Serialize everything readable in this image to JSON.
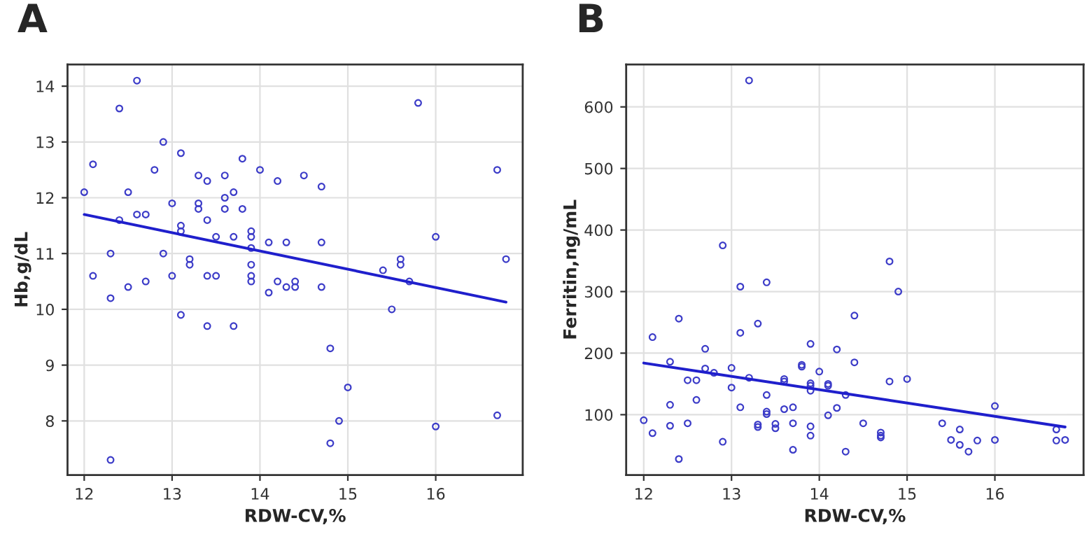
{
  "chart_data": [
    {
      "type": "scatter",
      "title": "A",
      "xlabel": "RDW-CV,%",
      "ylabel": "Hb,g/dL",
      "xlim": [
        11.81,
        16.99
      ],
      "ylim": [
        7.03,
        14.39
      ],
      "xticks": [
        12,
        13,
        14,
        15,
        16
      ],
      "yticks": [
        8,
        9,
        10,
        11,
        12,
        13,
        14
      ],
      "grid": true,
      "series": [
        {
          "marker": "circle",
          "color": "#3c3cc8",
          "x": [
            12.0,
            12.1,
            12.3,
            12.4,
            12.4,
            12.5,
            12.6,
            12.6,
            12.7,
            12.8,
            12.9,
            12.9,
            13.0,
            13.1,
            13.1,
            13.1,
            13.2,
            13.2,
            13.3,
            13.3,
            13.3,
            13.4,
            13.4,
            13.5,
            13.6,
            13.6,
            13.6,
            13.7,
            13.7,
            13.8,
            13.8,
            13.9,
            13.9,
            13.9,
            13.9,
            14.0,
            14.1,
            14.2,
            14.3,
            14.5,
            14.7,
            14.7,
            15.4,
            15.6,
            15.6,
            15.8,
            16.0,
            16.7,
            16.8,
            12.1,
            12.3,
            12.5,
            12.7,
            13.0,
            13.1,
            13.4,
            13.4,
            13.5,
            13.7,
            13.9,
            13.9,
            14.1,
            14.2,
            14.3,
            14.4,
            14.4,
            14.7,
            14.8,
            14.8,
            14.9,
            15.0,
            15.5,
            15.7,
            16.0,
            16.7,
            12.3
          ],
          "values": [
            12.1,
            12.6,
            11.0,
            13.6,
            11.6,
            12.1,
            14.1,
            11.7,
            11.7,
            12.5,
            13.0,
            11.0,
            11.9,
            12.8,
            11.5,
            11.4,
            10.9,
            10.8,
            12.4,
            11.9,
            11.8,
            12.3,
            11.6,
            11.3,
            12.4,
            12.0,
            11.8,
            12.1,
            11.3,
            12.7,
            11.8,
            11.4,
            11.3,
            11.1,
            10.8,
            12.5,
            11.2,
            12.3,
            11.2,
            12.4,
            12.2,
            11.2,
            10.7,
            10.9,
            10.8,
            13.7,
            11.3,
            12.5,
            10.9,
            10.6,
            10.2,
            10.4,
            10.5,
            10.6,
            9.9,
            10.6,
            9.7,
            10.6,
            9.7,
            10.6,
            10.5,
            10.3,
            10.5,
            10.4,
            10.5,
            10.4,
            10.4,
            9.3,
            7.6,
            8.0,
            8.6,
            10.0,
            10.5,
            7.9,
            8.1,
            7.3
          ]
        },
        {
          "type": "line",
          "color": "#1f1fcc",
          "x": [
            12.0,
            16.8
          ],
          "values": [
            11.7,
            10.13
          ]
        }
      ]
    },
    {
      "type": "scatter",
      "title": "B",
      "xlabel": "RDW-CV,%",
      "ylabel": "Ferritin,ng/mL",
      "xlim": [
        11.8,
        17.01
      ],
      "ylim": [
        2,
        669
      ],
      "xticks": [
        12,
        13,
        14,
        15,
        16
      ],
      "yticks": [
        100,
        200,
        300,
        400,
        500,
        600
      ],
      "grid": true,
      "series": [
        {
          "marker": "circle",
          "color": "#3c3cc8",
          "x": [
            13.2,
            12.9,
            14.8,
            12.0,
            12.1,
            12.1,
            12.3,
            12.3,
            12.3,
            12.4,
            12.4,
            12.5,
            12.5,
            12.6,
            12.6,
            12.7,
            12.7,
            12.8,
            12.9,
            13.0,
            13.0,
            13.1,
            13.1,
            13.1,
            13.2,
            13.3,
            13.3,
            13.3,
            13.4,
            13.4,
            13.4,
            13.4,
            13.5,
            13.5,
            13.6,
            13.6,
            13.6,
            13.7,
            13.7,
            13.7,
            13.8,
            13.8,
            13.9,
            13.9,
            13.9,
            13.9,
            13.9,
            13.9,
            14.0,
            14.1,
            14.1,
            14.1,
            14.2,
            14.2,
            14.3,
            14.3,
            14.4,
            14.4,
            14.5,
            14.7,
            14.7,
            14.7,
            14.8,
            14.9,
            15.0,
            15.4,
            15.5,
            15.6,
            15.6,
            15.7,
            15.8,
            16.0,
            16.0,
            16.7,
            16.7,
            16.8
          ],
          "values": [
            643,
            375,
            349,
            91,
            226,
            70,
            186,
            116,
            82,
            256,
            28,
            156,
            86,
            156,
            124,
            207,
            175,
            168,
            56,
            176,
            144,
            308,
            233,
            112,
            160,
            248,
            84,
            80,
            315,
            132,
            105,
            101,
            85,
            78,
            158,
            154,
            109,
            112,
            86,
            43,
            181,
            178,
            215,
            151,
            147,
            139,
            81,
            66,
            170,
            150,
            147,
            99,
            206,
            111,
            132,
            40,
            261,
            185,
            86,
            71,
            66,
            63,
            154,
            300,
            158,
            86,
            59,
            76,
            51,
            40,
            58,
            114,
            59,
            76,
            58,
            59
          ]
        },
        {
          "type": "line",
          "color": "#1f1fcc",
          "x": [
            12.0,
            16.8
          ],
          "values": [
            184,
            80
          ]
        }
      ]
    }
  ]
}
